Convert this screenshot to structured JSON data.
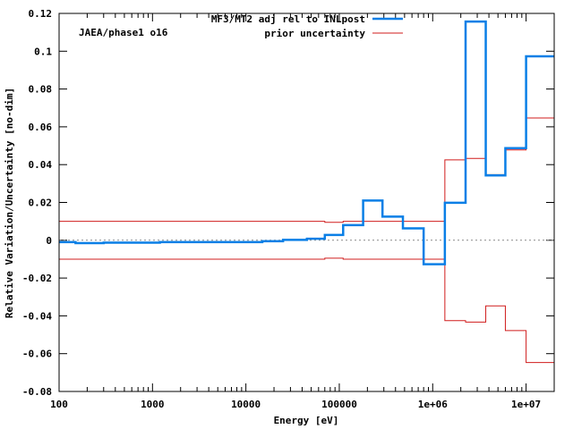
{
  "chart_data": {
    "type": "line",
    "title": "",
    "xlabel": "Energy [eV]",
    "ylabel": "Relative Variation/Uncertainty [no-dim]",
    "xscale": "log",
    "xlim": [
      100,
      20000000
    ],
    "ylim": [
      -0.08,
      0.12
    ],
    "x_ticks": [
      {
        "value": 100,
        "label": "100"
      },
      {
        "value": 1000,
        "label": "1000"
      },
      {
        "value": 10000,
        "label": "10000"
      },
      {
        "value": 100000,
        "label": "100000"
      },
      {
        "value": 1000000,
        "label": "1e+06"
      },
      {
        "value": 10000000,
        "label": "1e+07"
      }
    ],
    "y_ticks": [
      {
        "value": -0.08,
        "label": "-0.08"
      },
      {
        "value": -0.06,
        "label": "-0.06"
      },
      {
        "value": -0.04,
        "label": "-0.04"
      },
      {
        "value": -0.02,
        "label": "-0.02"
      },
      {
        "value": 0,
        "label": "0"
      },
      {
        "value": 0.02,
        "label": "0.02"
      },
      {
        "value": 0.04,
        "label": "0.04"
      },
      {
        "value": 0.06,
        "label": "0.06"
      },
      {
        "value": 0.08,
        "label": "0.08"
      },
      {
        "value": 0.1,
        "label": "0.1"
      },
      {
        "value": 0.12,
        "label": "0.12"
      }
    ],
    "annotation": "JAEA/phase1 o16",
    "legend_position": "top-right",
    "zero_line": true,
    "series": [
      {
        "name": "MF3/MT2 adj rel to INLpost",
        "color": "#0a7fe6",
        "style": "step",
        "x": [
          100,
          150,
          300,
          1200,
          15000,
          25000,
          45000,
          70000,
          110000,
          180000,
          290000,
          480000,
          800000,
          1350000,
          2250000,
          3700000,
          6000000,
          10000000,
          20000000
        ],
        "y": [
          -0.001,
          -0.0015,
          -0.0013,
          -0.001,
          -0.0005,
          0.0002,
          0.0008,
          0.0028,
          0.008,
          0.021,
          0.0125,
          0.0063,
          -0.0127,
          0.0198,
          0.1157,
          0.0343,
          0.0487,
          0.0973,
          0.0973
        ]
      },
      {
        "name": "prior uncertainty",
        "color": "#d01c1c",
        "style": "step",
        "x": [
          100,
          70000,
          110000,
          1350000,
          2250000,
          3700000,
          6000000,
          10000000,
          20000000
        ],
        "y": [
          0.01,
          0.0095,
          0.01,
          0.0425,
          0.0433,
          0.0347,
          0.0478,
          0.0647,
          0.0647
        ]
      },
      {
        "name": "",
        "color": "#d01c1c",
        "style": "step",
        "x": [
          100,
          70000,
          110000,
          1350000,
          2250000,
          3700000,
          6000000,
          10000000,
          20000000
        ],
        "y": [
          -0.01,
          -0.0095,
          -0.01,
          -0.0425,
          -0.0433,
          -0.0347,
          -0.0478,
          -0.0647,
          -0.0647
        ]
      }
    ]
  }
}
